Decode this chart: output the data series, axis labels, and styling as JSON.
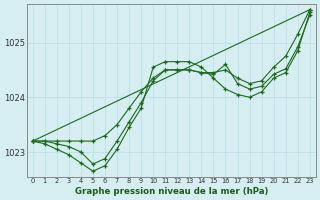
{
  "title": "Graphe pression niveau de la mer (hPa)",
  "background_color": "#d6eef2",
  "grid_color": "#b8dde4",
  "line_color": "#1a6b1a",
  "x_ticks": [
    0,
    1,
    2,
    3,
    4,
    5,
    6,
    7,
    8,
    9,
    10,
    11,
    12,
    13,
    14,
    15,
    16,
    17,
    18,
    19,
    20,
    21,
    22,
    23
  ],
  "ylim": [
    1022.55,
    1025.7
  ],
  "y_ticks": [
    1023,
    1024,
    1025
  ],
  "lines": [
    [
      1023.2,
      1023.2,
      1023.15,
      1023.1,
      1023.0,
      1022.75,
      1022.85,
      1023.2,
      1023.55,
      1023.85,
      1024.3,
      1024.45,
      1024.5,
      1024.5,
      1024.45,
      1024.4,
      1024.55,
      1024.2,
      1024.15,
      1024.2,
      1024.4,
      1024.5,
      1024.9,
      1025.55
    ],
    [
      1023.2,
      1023.2,
      1023.1,
      1023.05,
      1022.9,
      1022.68,
      1022.75,
      1023.0,
      1023.3,
      1023.65,
      1024.55,
      1024.65,
      1024.65,
      1024.65,
      1024.55,
      1024.3,
      1024.1,
      1024.05,
      1024.05,
      1024.1,
      1024.35,
      1024.4,
      1024.85,
      1025.6
    ],
    [
      1023.2,
      1023.15,
      1023.1,
      1023.0,
      1022.85,
      1022.75,
      1022.9,
      1023.3,
      1023.7,
      1024.05,
      1024.35,
      1024.5,
      1024.5,
      1024.5,
      1024.5,
      1024.4,
      1024.6,
      1024.25,
      1024.15,
      1024.2,
      1024.4,
      1024.5,
      1024.9,
      1025.45
    ],
    [
      1023.2,
      1023.2,
      1023.2,
      1023.2,
      1023.2,
      1023.2,
      1023.25,
      1023.45,
      1023.75,
      1024.05,
      1024.35,
      1024.5,
      1024.5,
      1024.5,
      1024.45,
      1024.4,
      1024.5,
      1024.3,
      1024.2,
      1024.25,
      1024.5,
      1024.7,
      1025.1,
      1025.55
    ]
  ]
}
